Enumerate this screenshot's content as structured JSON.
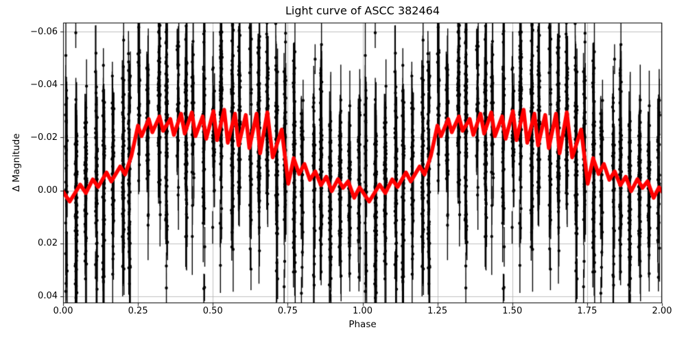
{
  "figure": {
    "title": "Light curve of ASCC 382464",
    "xlabel": "Phase",
    "ylabel": "Δ Magnitude"
  },
  "axes": {
    "x_ticks": [
      {
        "value": 0.0,
        "label": "0.00"
      },
      {
        "value": 0.25,
        "label": "0.25"
      },
      {
        "value": 0.5,
        "label": "0.50"
      },
      {
        "value": 0.75,
        "label": "0.75"
      },
      {
        "value": 1.0,
        "label": "1.00"
      },
      {
        "value": 1.25,
        "label": "1.25"
      },
      {
        "value": 1.5,
        "label": "1.50"
      },
      {
        "value": 1.75,
        "label": "1.75"
      },
      {
        "value": 2.0,
        "label": "2.00"
      }
    ],
    "y_ticks": [
      {
        "value": -0.06,
        "label": "−0.06"
      },
      {
        "value": -0.04,
        "label": "−0.04"
      },
      {
        "value": -0.02,
        "label": "−0.02"
      },
      {
        "value": 0.0,
        "label": "0.00"
      },
      {
        "value": 0.02,
        "label": "0.02"
      },
      {
        "value": 0.04,
        "label": "0.04"
      }
    ],
    "y_axis_inverted": true,
    "grid": true
  },
  "style": {
    "background": "#ffffff",
    "grid_color": "#b0b0b0",
    "grid_linewidth": 0.8,
    "spine_color": "#000000",
    "data_color": "#000000",
    "curve_color": "#ff0000",
    "curve_linewidth": 5.5,
    "marker_radius": 2.2,
    "errorbar_linewidth": 1.4
  },
  "chart_data": {
    "type": "scatter",
    "title": "Light curve of ASCC 382464",
    "xlabel": "Phase",
    "ylabel": "Δ Magnitude",
    "xlim": [
      0.0,
      2.0
    ],
    "ylim": {
      "top": -0.0634,
      "bottom": 0.0426
    },
    "grid": true,
    "periods_plotted": 2,
    "series": [
      {
        "name": "phase-folded photometric observations",
        "type": "errorbar-scatter",
        "color": "#000000",
        "note": "Thousands of points grouped in ~33 narrow phase clusters per cycle; each cluster spans most of the magnitude range with vertical error bars; same data repeated at phase+1. Individual values are not resolvable in the source image and are reproduced statistically from these parameters.",
        "cluster_generation": {
          "seed": 1337,
          "clusters_per_period": 33,
          "cluster_phase_jitter": 0.012,
          "points_min": 18,
          "points_max": 92,
          "point_phase_jitter": 0.007,
          "sigma_min": 0.015,
          "sigma_max": 0.024,
          "cluster_mean_offset": 0.012,
          "errbar_half_min": 0.005,
          "errbar_half_max": 0.021,
          "outlier_fraction": 0.06,
          "outlier_extra_err": 0.008,
          "outlier_spread": 0.03
        }
      },
      {
        "name": "binned mean light curve",
        "type": "line",
        "color": "#ff0000",
        "linewidth": 5.5,
        "period_points": [
          [
            0.0,
            0.0005
          ],
          [
            0.022,
            0.0042
          ],
          [
            0.057,
            -0.0022
          ],
          [
            0.076,
            0.001
          ],
          [
            0.099,
            -0.0042
          ],
          [
            0.117,
            -0.0013
          ],
          [
            0.145,
            -0.0068
          ],
          [
            0.161,
            -0.0034
          ],
          [
            0.191,
            -0.0091
          ],
          [
            0.207,
            -0.006
          ],
          [
            0.228,
            -0.013
          ],
          [
            0.25,
            -0.0245
          ],
          [
            0.262,
            -0.0205
          ],
          [
            0.286,
            -0.027
          ],
          [
            0.298,
            -0.022
          ],
          [
            0.322,
            -0.028
          ],
          [
            0.334,
            -0.0225
          ],
          [
            0.358,
            -0.027
          ],
          [
            0.37,
            -0.021
          ],
          [
            0.394,
            -0.029
          ],
          [
            0.406,
            -0.0215
          ],
          [
            0.43,
            -0.0295
          ],
          [
            0.442,
            -0.0205
          ],
          [
            0.466,
            -0.028
          ],
          [
            0.478,
            -0.0195
          ],
          [
            0.502,
            -0.03
          ],
          [
            0.514,
            -0.019
          ],
          [
            0.538,
            -0.0305
          ],
          [
            0.55,
            -0.018
          ],
          [
            0.574,
            -0.029
          ],
          [
            0.586,
            -0.017
          ],
          [
            0.61,
            -0.0285
          ],
          [
            0.622,
            -0.016
          ],
          [
            0.646,
            -0.029
          ],
          [
            0.658,
            -0.014
          ],
          [
            0.682,
            -0.0295
          ],
          [
            0.7,
            -0.0125
          ],
          [
            0.73,
            -0.023
          ],
          [
            0.752,
            -0.0025
          ],
          [
            0.77,
            -0.0122
          ],
          [
            0.788,
            -0.0062
          ],
          [
            0.806,
            -0.01
          ],
          [
            0.824,
            -0.004
          ],
          [
            0.842,
            -0.0072
          ],
          [
            0.861,
            -0.002
          ],
          [
            0.879,
            -0.0052
          ],
          [
            0.897,
            0.0003
          ],
          [
            0.918,
            -0.0043
          ],
          [
            0.935,
            -0.001
          ],
          [
            0.952,
            -0.0035
          ],
          [
            0.972,
            0.0028
          ],
          [
            0.99,
            -0.0012
          ]
        ]
      }
    ]
  }
}
